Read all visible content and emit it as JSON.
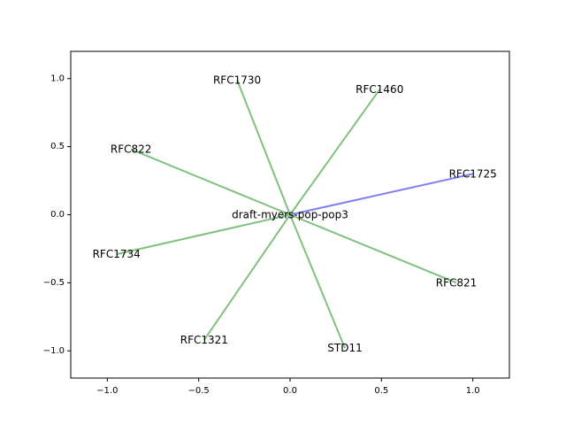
{
  "chart_data": {
    "type": "network",
    "title": "",
    "xlabel": "",
    "ylabel": "",
    "xlim": [
      -1.2,
      1.2
    ],
    "ylim": [
      -1.2,
      1.2
    ],
    "x_ticks": [
      -1.0,
      -0.5,
      0.0,
      0.5,
      1.0
    ],
    "x_tick_labels": [
      "−1.0",
      "−0.5",
      "0.0",
      "0.5",
      "1.0"
    ],
    "y_ticks": [
      -1.0,
      -0.5,
      0.0,
      0.5,
      1.0
    ],
    "y_tick_labels": [
      "−1.0",
      "−0.5",
      "0.0",
      "0.5",
      "1.0"
    ],
    "grid": false,
    "center": {
      "label": "draft-myers-pop-pop3",
      "x": 0.0,
      "y": 0.0
    },
    "edge_colors": {
      "green": "#80c080",
      "blue": "#8080f0"
    },
    "nodes": [
      {
        "label": "RFC1725",
        "x": 1.0,
        "y": 0.3,
        "color": "blue"
      },
      {
        "label": "RFC1460",
        "x": 0.49,
        "y": 0.92,
        "color": "green"
      },
      {
        "label": "RFC1730",
        "x": -0.29,
        "y": 0.99,
        "color": "green"
      },
      {
        "label": "RFC822",
        "x": -0.87,
        "y": 0.48,
        "color": "green"
      },
      {
        "label": "RFC1734",
        "x": -0.95,
        "y": -0.29,
        "color": "green"
      },
      {
        "label": "RFC1321",
        "x": -0.47,
        "y": -0.92,
        "color": "green"
      },
      {
        "label": "STD11",
        "x": 0.3,
        "y": -0.98,
        "color": "green"
      },
      {
        "label": "RFC821",
        "x": 0.91,
        "y": -0.5,
        "color": "green"
      }
    ]
  }
}
